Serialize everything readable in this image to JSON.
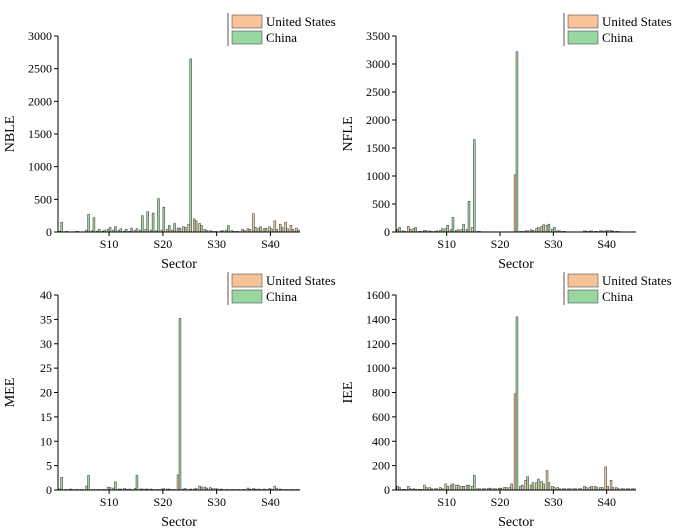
{
  "colors": {
    "us": "#f6c39a",
    "china": "#98d8a0",
    "edge": "#333333"
  },
  "legend": {
    "series": [
      "United States",
      "China"
    ]
  },
  "chart_data": [
    {
      "type": "bar",
      "ylabel": "NBLE",
      "xlabel": "Sector",
      "ylim": [
        0,
        3000
      ],
      "yticks": [
        0,
        500,
        1000,
        1500,
        2000,
        2500,
        3000
      ],
      "xticks": [
        {
          "pos": 10,
          "label": "S10"
        },
        {
          "pos": 20,
          "label": "S20"
        },
        {
          "pos": 30,
          "label": "S30"
        },
        {
          "pos": 40,
          "label": "S40"
        }
      ],
      "legend": "top-right",
      "x": [
        1,
        2,
        3,
        4,
        5,
        6,
        7,
        8,
        9,
        10,
        11,
        12,
        13,
        14,
        15,
        16,
        17,
        18,
        19,
        20,
        21,
        22,
        23,
        24,
        25,
        26,
        27,
        28,
        29,
        30,
        31,
        32,
        33,
        34,
        35,
        36,
        37,
        38,
        39,
        40,
        41,
        42,
        43,
        44,
        45
      ],
      "series": [
        {
          "name": "United States",
          "values": [
            10,
            5,
            3,
            8,
            2,
            30,
            20,
            15,
            10,
            40,
            30,
            20,
            15,
            10,
            20,
            30,
            40,
            30,
            20,
            30,
            40,
            30,
            60,
            80,
            120,
            200,
            130,
            40,
            20,
            10,
            15,
            30,
            20,
            10,
            40,
            50,
            280,
            60,
            50,
            80,
            170,
            120,
            150,
            100,
            60
          ]
        },
        {
          "name": "China",
          "values": [
            150,
            10,
            5,
            10,
            5,
            270,
            220,
            40,
            30,
            70,
            80,
            50,
            40,
            60,
            50,
            250,
            310,
            290,
            510,
            380,
            100,
            130,
            60,
            70,
            2650,
            170,
            100,
            20,
            10,
            5,
            20,
            100,
            10,
            5,
            20,
            40,
            70,
            80,
            60,
            50,
            40,
            70,
            50,
            40,
            30
          ]
        }
      ]
    },
    {
      "type": "bar",
      "ylabel": "NFLE",
      "xlabel": "Sector",
      "ylim": [
        0,
        3500
      ],
      "yticks": [
        0,
        500,
        1000,
        1500,
        2000,
        2500,
        3000,
        3500
      ],
      "xticks": [
        {
          "pos": 10,
          "label": "S10"
        },
        {
          "pos": 20,
          "label": "S20"
        },
        {
          "pos": 30,
          "label": "S30"
        },
        {
          "pos": 40,
          "label": "S40"
        }
      ],
      "legend": "top-right",
      "x": [
        1,
        2,
        3,
        4,
        5,
        6,
        7,
        8,
        9,
        10,
        11,
        12,
        13,
        14,
        15,
        16,
        17,
        18,
        19,
        20,
        21,
        22,
        23,
        24,
        25,
        26,
        27,
        28,
        29,
        30,
        31,
        32,
        33,
        34,
        35,
        36,
        37,
        38,
        39,
        40,
        41,
        42,
        43,
        44,
        45
      ],
      "series": [
        {
          "name": "United States",
          "values": [
            50,
            20,
            100,
            60,
            10,
            30,
            20,
            10,
            30,
            60,
            40,
            30,
            40,
            50,
            80,
            10,
            5,
            5,
            5,
            5,
            5,
            5,
            1020,
            10,
            20,
            40,
            60,
            100,
            120,
            50,
            20,
            10,
            5,
            5,
            5,
            20,
            15,
            10,
            20,
            20,
            30,
            10,
            5,
            5,
            5
          ]
        },
        {
          "name": "China",
          "values": [
            80,
            10,
            50,
            80,
            10,
            20,
            10,
            20,
            60,
            120,
            260,
            40,
            140,
            550,
            1650,
            10,
            5,
            5,
            5,
            5,
            5,
            5,
            3220,
            10,
            20,
            30,
            80,
            130,
            140,
            80,
            20,
            10,
            5,
            5,
            5,
            15,
            20,
            10,
            20,
            25,
            15,
            10,
            5,
            5,
            5
          ]
        }
      ]
    },
    {
      "type": "bar",
      "ylabel": "MEE",
      "xlabel": "Sector",
      "ylim": [
        0,
        40
      ],
      "yticks": [
        0,
        5,
        10,
        15,
        20,
        25,
        30,
        35,
        40
      ],
      "xticks": [
        {
          "pos": 10,
          "label": "S10"
        },
        {
          "pos": 20,
          "label": "S20"
        },
        {
          "pos": 30,
          "label": "S30"
        },
        {
          "pos": 40,
          "label": "S40"
        }
      ],
      "legend": "top-right",
      "x": [
        1,
        2,
        3,
        4,
        5,
        6,
        7,
        8,
        9,
        10,
        11,
        12,
        13,
        14,
        15,
        16,
        17,
        18,
        19,
        20,
        21,
        22,
        23,
        24,
        25,
        26,
        27,
        28,
        29,
        30,
        31,
        32,
        33,
        34,
        35,
        36,
        37,
        38,
        39,
        40,
        41,
        42,
        43,
        44,
        45
      ],
      "series": [
        {
          "name": "United States",
          "values": [
            0.2,
            0.1,
            0.2,
            0.1,
            0.1,
            0.8,
            0.1,
            0.1,
            0.1,
            0.6,
            0.4,
            0.2,
            0.3,
            0.2,
            0.3,
            0.2,
            0.2,
            0.2,
            0.1,
            0.2,
            0.2,
            0.1,
            3.1,
            0.2,
            0.1,
            0.2,
            0.8,
            0.6,
            0.5,
            0.3,
            0.2,
            0.1,
            0.1,
            0.1,
            0.1,
            0.4,
            0.3,
            0.2,
            0.2,
            0.3,
            0.8,
            0.2,
            0.1,
            0.1,
            0.1
          ]
        },
        {
          "name": "China",
          "values": [
            2.6,
            0.1,
            0.1,
            0.1,
            0.1,
            3.0,
            0.1,
            0.1,
            0.1,
            0.5,
            1.7,
            0.2,
            0.2,
            0.1,
            3.0,
            0.2,
            0.2,
            0.1,
            0.1,
            0.3,
            0.2,
            0.1,
            35.2,
            0.3,
            0.2,
            0.3,
            0.6,
            0.4,
            0.3,
            0.2,
            0.1,
            0.1,
            0.1,
            0.1,
            0.1,
            0.2,
            0.2,
            0.1,
            0.1,
            0.2,
            0.3,
            0.1,
            0.1,
            0.1,
            0.1
          ]
        }
      ]
    },
    {
      "type": "bar",
      "ylabel": "IEE",
      "xlabel": "Sector",
      "ylim": [
        0,
        1600
      ],
      "yticks": [
        0,
        200,
        400,
        600,
        800,
        1000,
        1200,
        1400,
        1600
      ],
      "xticks": [
        {
          "pos": 10,
          "label": "S10"
        },
        {
          "pos": 20,
          "label": "S20"
        },
        {
          "pos": 30,
          "label": "S30"
        },
        {
          "pos": 40,
          "label": "S40"
        }
      ],
      "legend": "top-right",
      "x": [
        1,
        2,
        3,
        4,
        5,
        6,
        7,
        8,
        9,
        10,
        11,
        12,
        13,
        14,
        15,
        16,
        17,
        18,
        19,
        20,
        21,
        22,
        23,
        24,
        25,
        26,
        27,
        28,
        29,
        30,
        31,
        32,
        33,
        34,
        35,
        36,
        37,
        38,
        39,
        40,
        41,
        42,
        43,
        44,
        45
      ],
      "series": [
        {
          "name": "United States",
          "values": [
            30,
            5,
            30,
            10,
            5,
            40,
            20,
            10,
            20,
            50,
            40,
            40,
            30,
            40,
            30,
            10,
            10,
            15,
            10,
            15,
            20,
            20,
            790,
            30,
            80,
            40,
            60,
            70,
            160,
            30,
            20,
            10,
            10,
            10,
            10,
            30,
            20,
            30,
            20,
            190,
            80,
            20,
            10,
            10,
            10
          ]
        },
        {
          "name": "China",
          "values": [
            20,
            5,
            10,
            5,
            5,
            20,
            10,
            10,
            10,
            30,
            50,
            40,
            30,
            40,
            120,
            10,
            10,
            15,
            10,
            15,
            20,
            50,
            1420,
            40,
            110,
            60,
            90,
            50,
            60,
            20,
            10,
            10,
            10,
            10,
            10,
            20,
            30,
            20,
            20,
            30,
            20,
            10,
            10,
            10,
            10
          ]
        }
      ]
    }
  ]
}
